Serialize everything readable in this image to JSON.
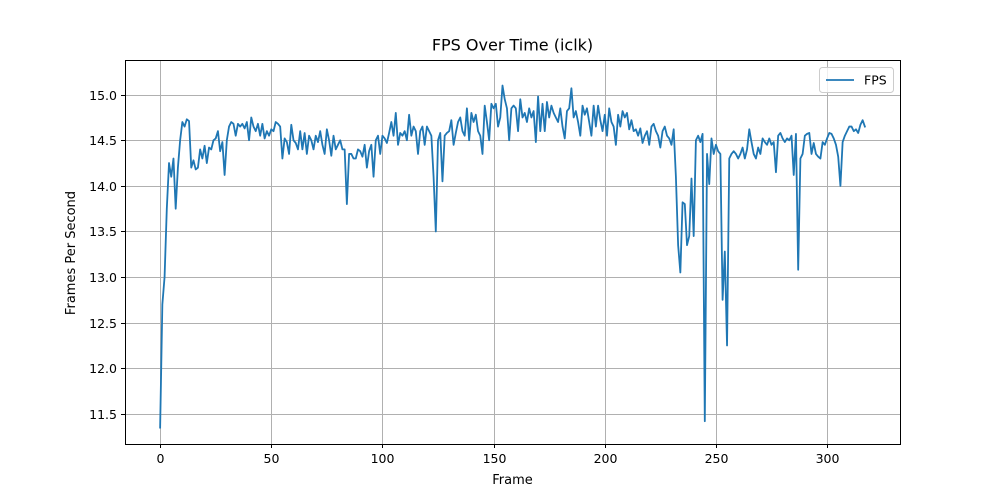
{
  "chart_data": {
    "type": "line",
    "title": "FPS Over Time (iclk)",
    "xlabel": "Frame",
    "ylabel": "Frames Per Second",
    "xlim": [
      -15.8,
      332.8
    ],
    "ylim": [
      11.17,
      15.38
    ],
    "xticks": [
      0,
      50,
      100,
      150,
      200,
      250,
      300
    ],
    "yticks": [
      11.5,
      12.0,
      12.5,
      13.0,
      13.5,
      14.0,
      14.5,
      15.0
    ],
    "ytick_labels": [
      "11.5",
      "12.0",
      "12.5",
      "13.0",
      "13.5",
      "14.0",
      "14.5",
      "15.0"
    ],
    "grid": true,
    "legend": "upper right",
    "series": [
      {
        "name": "FPS",
        "color": "#1f77b4",
        "values": [
          11.35,
          12.7,
          13.0,
          13.75,
          14.25,
          14.1,
          14.3,
          13.75,
          14.2,
          14.5,
          14.7,
          14.65,
          14.73,
          14.71,
          14.2,
          14.28,
          14.18,
          14.2,
          14.4,
          14.3,
          14.44,
          14.25,
          14.42,
          14.4,
          14.5,
          14.52,
          14.6,
          14.38,
          14.48,
          14.12,
          14.5,
          14.65,
          14.7,
          14.68,
          14.55,
          14.68,
          14.65,
          14.68,
          14.63,
          14.7,
          14.5,
          14.75,
          14.65,
          14.6,
          14.68,
          14.55,
          14.68,
          14.52,
          14.6,
          14.55,
          14.62,
          14.6,
          14.7,
          14.68,
          14.65,
          14.3,
          14.52,
          14.48,
          14.35,
          14.67,
          14.5,
          14.47,
          14.4,
          14.6,
          14.4,
          14.58,
          14.35,
          14.55,
          14.5,
          14.4,
          14.55,
          14.48,
          14.6,
          14.45,
          14.35,
          14.62,
          14.5,
          14.33,
          14.55,
          14.4,
          14.45,
          14.5,
          14.4,
          14.4,
          13.8,
          14.35,
          14.35,
          14.3,
          14.3,
          14.4,
          14.38,
          14.32,
          14.45,
          14.2,
          14.38,
          14.45,
          14.1,
          14.5,
          14.55,
          14.35,
          14.55,
          14.52,
          14.47,
          14.58,
          14.7,
          14.55,
          14.8,
          14.45,
          14.58,
          14.55,
          14.6,
          14.5,
          14.78,
          14.55,
          14.65,
          14.6,
          14.35,
          14.6,
          14.65,
          14.45,
          14.65,
          14.6,
          14.55,
          14.1,
          13.5,
          14.5,
          14.58,
          14.05,
          14.55,
          14.58,
          14.6,
          14.72,
          14.45,
          14.58,
          14.7,
          14.75,
          14.6,
          14.55,
          14.85,
          14.5,
          14.8,
          14.7,
          14.78,
          14.6,
          14.55,
          14.35,
          14.88,
          14.7,
          14.5,
          14.9,
          14.85,
          14.9,
          14.65,
          14.75,
          15.1,
          14.95,
          14.85,
          14.5,
          14.85,
          14.88,
          14.85,
          14.6,
          14.95,
          14.75,
          14.8,
          14.7,
          14.85,
          14.75,
          14.82,
          14.48,
          14.98,
          14.6,
          14.9,
          14.6,
          14.92,
          14.75,
          14.88,
          14.8,
          14.75,
          14.7,
          14.85,
          14.65,
          14.52,
          14.82,
          14.85,
          15.07,
          14.75,
          14.82,
          14.7,
          14.55,
          14.88,
          14.78,
          14.85,
          14.7,
          14.55,
          14.88,
          14.65,
          14.88,
          14.72,
          14.6,
          14.78,
          14.55,
          14.85,
          14.7,
          14.65,
          14.45,
          14.78,
          14.65,
          14.82,
          14.75,
          14.8,
          14.62,
          14.72,
          14.6,
          14.62,
          14.55,
          14.63,
          14.47,
          14.55,
          14.6,
          14.45,
          14.65,
          14.68,
          14.6,
          14.55,
          14.42,
          14.6,
          14.65,
          14.55,
          14.52,
          14.45,
          14.62,
          14.1,
          13.35,
          13.05,
          13.82,
          13.8,
          13.35,
          13.45,
          14.08,
          13.45,
          14.5,
          14.55,
          14.48,
          14.57,
          11.42,
          14.35,
          14.02,
          14.52,
          14.35,
          14.45,
          14.38,
          14.35,
          12.75,
          13.28,
          12.25,
          14.3,
          14.35,
          14.38,
          14.35,
          14.3,
          14.35,
          14.42,
          14.3,
          14.4,
          14.62,
          14.48,
          14.35,
          14.3,
          14.42,
          14.35,
          14.52,
          14.48,
          14.45,
          14.52,
          14.45,
          14.48,
          14.15,
          14.55,
          14.58,
          14.52,
          14.48,
          14.52,
          14.5,
          14.55,
          14.12,
          14.57,
          13.08,
          14.3,
          14.35,
          14.55,
          14.57,
          14.58,
          14.35,
          14.47,
          14.35,
          14.32,
          14.3,
          14.48,
          14.45,
          14.52,
          14.58,
          14.57,
          14.52,
          14.45,
          14.32,
          14.0,
          14.48,
          14.55,
          14.6,
          14.65,
          14.65,
          14.6,
          14.62,
          14.58,
          14.67,
          14.72,
          14.65
        ]
      }
    ]
  }
}
